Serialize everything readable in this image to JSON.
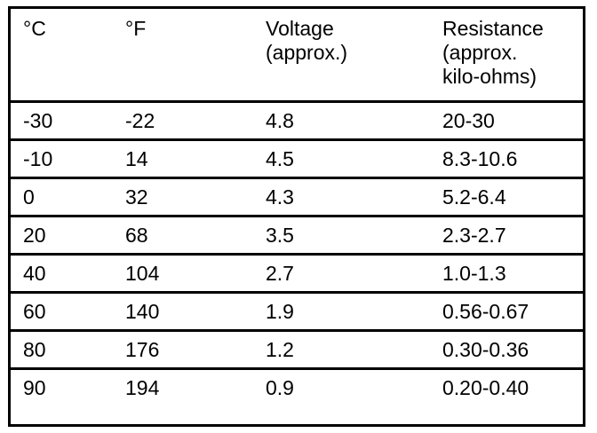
{
  "table": {
    "headers": [
      "°C",
      "°F",
      "Voltage\n(approx.)",
      "Resistance\n(approx.\nkilo-ohms)"
    ],
    "rows": [
      [
        "-30",
        "-22",
        "4.8",
        "20-30"
      ],
      [
        "-10",
        "14",
        "4.5",
        "8.3-10.6"
      ],
      [
        "0",
        "32",
        "4.3",
        "5.2-6.4"
      ],
      [
        "20",
        "68",
        "3.5",
        "2.3-2.7"
      ],
      [
        "40",
        "104",
        "2.7",
        "1.0-1.3"
      ],
      [
        "60",
        "140",
        "1.9",
        "0.56-0.67"
      ],
      [
        "80",
        "176",
        "1.2",
        "0.30-0.36"
      ],
      [
        "90",
        "194",
        "0.9",
        "0.20-0.40"
      ]
    ]
  }
}
